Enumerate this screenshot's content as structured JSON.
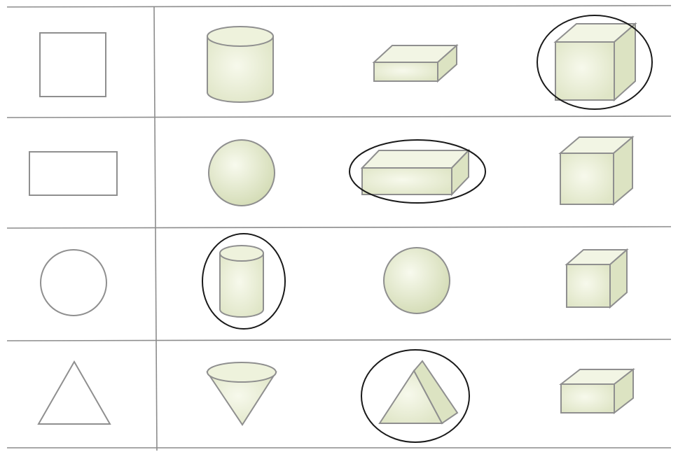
{
  "colors": {
    "background": "#ffffff",
    "grid_line": "#8c8c8c",
    "shape_outline": "#8f8f8f",
    "solid_fill": "#eef2dc",
    "solid_fill_dark": "#d8dfbf",
    "circle_mark": "#1a1a1a"
  },
  "rows": [
    {
      "flat_shape": "square-icon",
      "options": [
        "cylinder-icon",
        "flat-box-icon",
        "cube-icon"
      ],
      "circled_option": 3
    },
    {
      "flat_shape": "rectangle-icon",
      "options": [
        "sphere-icon",
        "long-box-icon",
        "cube-icon"
      ],
      "circled_option": 2
    },
    {
      "flat_shape": "circle-icon",
      "options": [
        "cylinder-icon",
        "sphere-icon",
        "cube-icon"
      ],
      "circled_option": 1
    },
    {
      "flat_shape": "triangle-icon",
      "options": [
        "cone-icon",
        "triangular-prism-icon",
        "flat-box-icon"
      ],
      "circled_option": 2
    }
  ]
}
